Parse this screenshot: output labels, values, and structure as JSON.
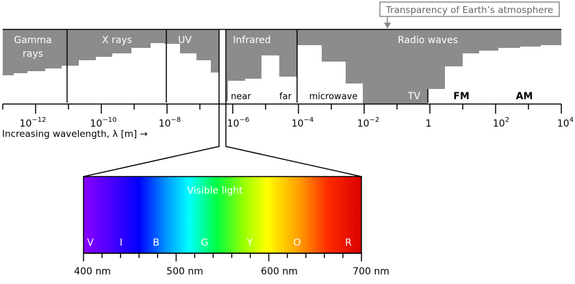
{
  "colors": {
    "atmosphere_gray": "#8c8c8c",
    "band_label": "#ffffff",
    "line": "#000000",
    "callout_border": "#888888",
    "callout_text": "#666666"
  },
  "callout": {
    "text": "Transparency of Earth’s atmosphere"
  },
  "bands": [
    {
      "key": "gamma",
      "line1": "Gamma",
      "line2": "rays"
    },
    {
      "key": "xray",
      "line1": "X rays"
    },
    {
      "key": "uv",
      "line1": "UV"
    },
    {
      "key": "infrared",
      "line1": "Infrared"
    },
    {
      "key": "radio",
      "line1": "Radio waves"
    }
  ],
  "subbands": [
    {
      "key": "near",
      "label": "near",
      "color": "#000000"
    },
    {
      "key": "far",
      "label": "far",
      "color": "#000000"
    },
    {
      "key": "microwave",
      "label": "microwave",
      "color": "#000000"
    },
    {
      "key": "tv",
      "label": "TV",
      "color": "#ffffff"
    },
    {
      "key": "fm",
      "label": "FM",
      "color": "#000000"
    },
    {
      "key": "am",
      "label": "AM",
      "color": "#000000"
    }
  ],
  "wavelength_axis": {
    "label": "Increasing wavelength, λ [m] →",
    "ticks": [
      {
        "base": "10",
        "exp": "−12"
      },
      {
        "base": "10",
        "exp": "−10"
      },
      {
        "base": "10",
        "exp": "−8"
      },
      {
        "base": "10",
        "exp": "−6"
      },
      {
        "base": "10",
        "exp": "−4"
      },
      {
        "base": "10",
        "exp": "−2"
      },
      {
        "base": "1",
        "exp": ""
      },
      {
        "base": "10",
        "exp": "2"
      },
      {
        "base": "10",
        "exp": "4"
      }
    ]
  },
  "visible": {
    "title": "Visible light",
    "letters": [
      "V",
      "I",
      "B",
      "G",
      "Y",
      "O",
      "R"
    ],
    "nm_labels": [
      "400 nm",
      "500 nm",
      "600 nm",
      "700 nm"
    ]
  }
}
